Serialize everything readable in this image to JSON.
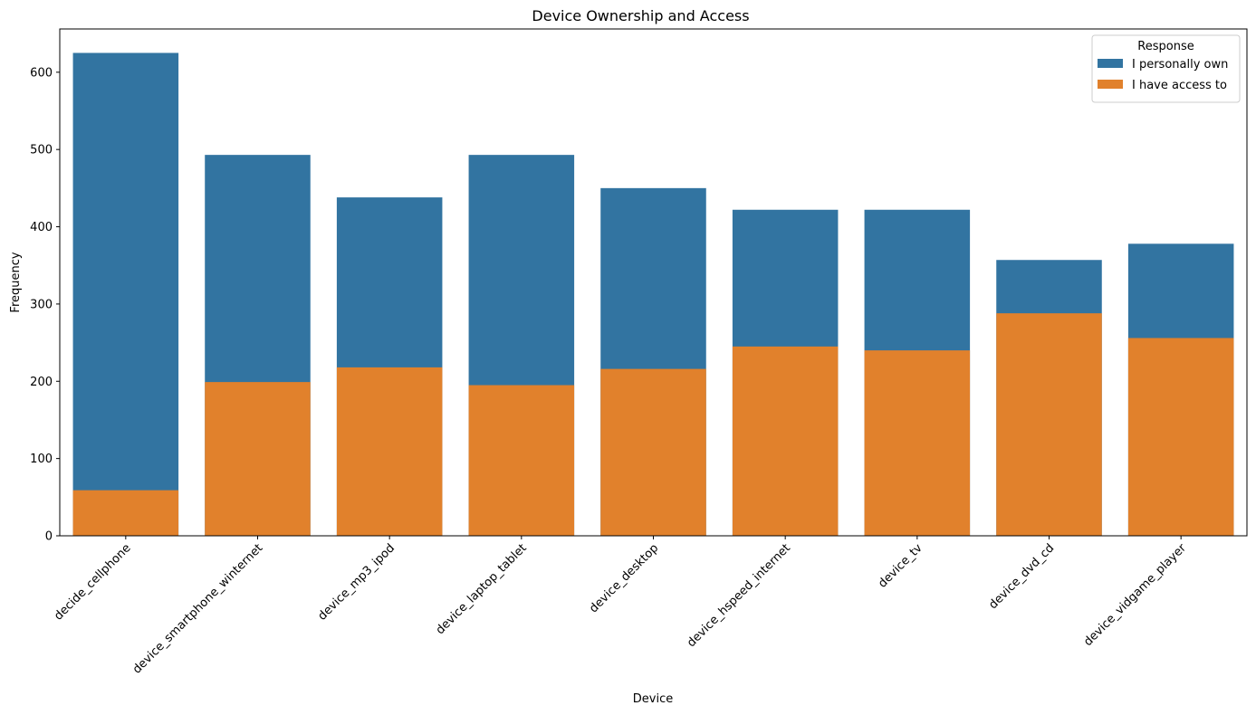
{
  "chart_data": {
    "type": "bar",
    "title": "Device Ownership and Access",
    "xlabel": "Device",
    "ylabel": "Frequency",
    "ylim": [
      0,
      656
    ],
    "yticks": [
      0,
      100,
      200,
      300,
      400,
      500,
      600
    ],
    "categories": [
      "decide_cellphone",
      "device_smartphone_winternet",
      "device_mp3_ipod",
      "device_laptop_tablet",
      "device_desktop",
      "device_hspeed_internet",
      "device_tv",
      "device_dvd_cd",
      "device_vidgame_player"
    ],
    "series": [
      {
        "name": "I personally own",
        "color": "#3274a1",
        "values": [
          625,
          493,
          438,
          493,
          450,
          422,
          422,
          357,
          378
        ]
      },
      {
        "name": "I have access to",
        "color": "#e1812c",
        "values": [
          59,
          199,
          218,
          195,
          216,
          245,
          240,
          288,
          256
        ]
      }
    ],
    "legend": {
      "title": "Response",
      "placement": "top-right"
    },
    "grid": false
  }
}
